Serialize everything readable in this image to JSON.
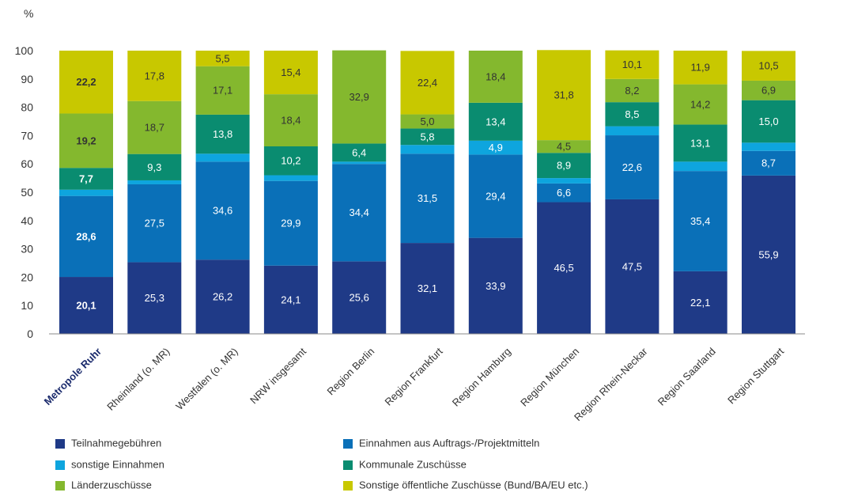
{
  "chart_data": {
    "type": "bar",
    "stacked": true,
    "ylabel": "%",
    "ylim": [
      0,
      100
    ],
    "yticks": [
      0,
      10,
      20,
      30,
      40,
      50,
      60,
      70,
      80,
      90,
      100
    ],
    "grid": false,
    "legend_position": "bottom",
    "categories": [
      "Metropole Ruhr",
      "Rheinland (o. MR)",
      "Westfalen (o. MR)",
      "NRW insgesamt",
      "Region Berlin",
      "Region Frankfurt",
      "Region Hamburg",
      "Region München",
      "Region Rhein-Neckar",
      "Region Saarland",
      "Region Stuttgart"
    ],
    "highlight_category_index": 0,
    "series": [
      {
        "name": "Teilnahmegebühren",
        "color": "#1f3a87",
        "label_color": "#ffffff",
        "values": [
          20.1,
          25.3,
          26.2,
          24.1,
          25.6,
          32.1,
          33.9,
          46.5,
          47.5,
          22.1,
          55.9
        ],
        "labels": [
          "20,1",
          "25,3",
          "26,2",
          "24,1",
          "25,6",
          "32,1",
          "33,9",
          "46,5",
          "47,5",
          "22,1",
          "55,9"
        ]
      },
      {
        "name": "Einnahmen aus Auftrags-/Projektmitteln",
        "color": "#0a70b8",
        "label_color": "#ffffff",
        "values": [
          28.6,
          27.5,
          34.6,
          29.9,
          34.4,
          31.5,
          29.4,
          6.6,
          22.6,
          35.4,
          8.7
        ],
        "labels": [
          "28,6",
          "27,5",
          "34,6",
          "29,9",
          "34,4",
          "31,5",
          "29,4",
          "6,6",
          "22,6",
          "35,4",
          "8,7"
        ]
      },
      {
        "name": "sonstige Einnahmen",
        "color": "#0ea5de",
        "label_color": "#ffffff",
        "values": [
          2.2,
          1.4,
          2.8,
          2.0,
          0.8,
          3.1,
          4.9,
          1.9,
          3.2,
          3.3,
          2.9
        ],
        "labels": [
          "",
          "",
          "",
          "",
          "",
          "",
          "4,9",
          "",
          "",
          "",
          ""
        ]
      },
      {
        "name": "Kommunale Zuschüsse",
        "color": "#0a8c70",
        "label_color": "#ffffff",
        "values": [
          7.7,
          9.3,
          13.8,
          10.2,
          6.4,
          5.8,
          13.4,
          8.9,
          8.5,
          13.1,
          15.0
        ],
        "labels": [
          "7,7",
          "9,3",
          "13,8",
          "10,2",
          "6,4",
          "5,8",
          "13,4",
          "8,9",
          "8,5",
          "13,1",
          "15,0"
        ]
      },
      {
        "name": "Länderzuschüsse",
        "color": "#84b82e",
        "label_color": "#333333",
        "values": [
          19.2,
          18.7,
          17.1,
          18.4,
          32.9,
          5.0,
          18.4,
          4.5,
          8.2,
          14.2,
          6.9
        ],
        "labels": [
          "19,2",
          "18,7",
          "17,1",
          "18,4",
          "32,9",
          "5,0",
          "18,4",
          "4,5",
          "8,2",
          "14,2",
          "6,9"
        ]
      },
      {
        "name": "Sonstige öffentliche Zuschüsse (Bund/BA/EU etc.)",
        "color": "#c8c800",
        "label_color": "#333333",
        "values": [
          22.2,
          17.8,
          5.5,
          15.4,
          0,
          22.4,
          0,
          31.8,
          10.1,
          11.9,
          10.5
        ],
        "labels": [
          "22,2",
          "17,8",
          "5,5",
          "15,4",
          "",
          "22,4",
          "",
          "31,8",
          "10,1",
          "11,9",
          "10,5"
        ]
      }
    ]
  },
  "legend_order": [
    0,
    1,
    2,
    3,
    4,
    5
  ]
}
